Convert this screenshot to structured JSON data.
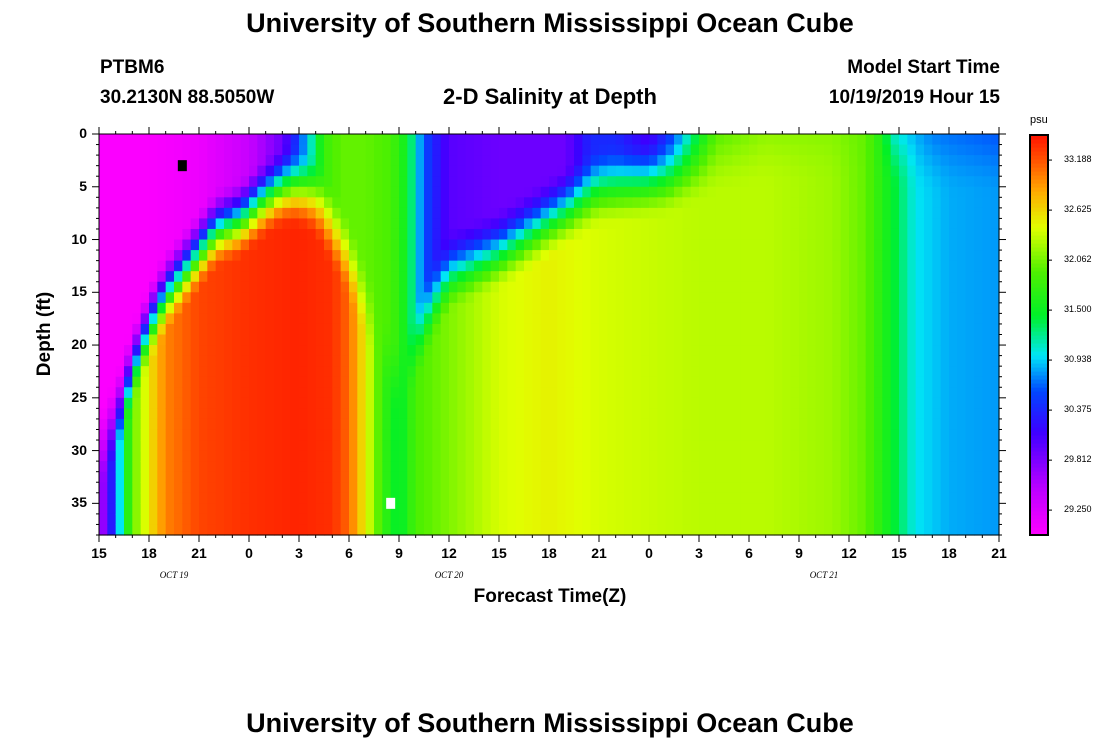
{
  "header": {
    "title_top": "University of Southern Mississippi Ocean Cube",
    "station": "PTBM6",
    "location": "30.2130N 88.5050W",
    "chart_title": "2-D Salinity at Depth",
    "model_label": "Model Start Time",
    "model_time": "10/19/2019 Hour 15",
    "title_bottom": "University of Southern Mississippi Ocean Cube"
  },
  "chart_data": {
    "type": "heatmap",
    "title": "2-D Salinity at Depth",
    "xlabel": "Forecast Time(Z)",
    "ylabel": "Depth (ft)",
    "units": "psu",
    "x_tick_labels": [
      "15",
      "18",
      "21",
      "0",
      "3",
      "6",
      "9",
      "12",
      "15",
      "18",
      "21",
      "0",
      "3",
      "6",
      "9",
      "12",
      "15",
      "18",
      "21"
    ],
    "x_range_hours": [
      0,
      54
    ],
    "date_labels": [
      {
        "text": "OCT 19",
        "hour": 4.5
      },
      {
        "text": "OCT 20",
        "hour": 21
      },
      {
        "text": "OCT 21",
        "hour": 43.5
      }
    ],
    "y_tick_labels": [
      "0",
      "5",
      "10",
      "15",
      "20",
      "25",
      "30",
      "35"
    ],
    "y_range_ft": [
      0,
      38
    ],
    "colorbar": {
      "label": "psu",
      "min": 28.97,
      "max": 33.47,
      "ticks": [
        "33.188",
        "32.625",
        "32.062",
        "31.500",
        "30.938",
        "30.375",
        "29.812",
        "29.250"
      ],
      "tick_values": [
        33.188,
        32.625,
        32.062,
        31.5,
        30.938,
        30.375,
        29.812,
        29.25
      ]
    },
    "markers": [
      {
        "kind": "minimum",
        "color": "#000000",
        "hour": 5,
        "depth": 3
      },
      {
        "kind": "maximum",
        "color": "#ffffff",
        "hour": 17.5,
        "depth": 35
      }
    ],
    "surface_profile": [
      [
        0,
        29.0
      ],
      [
        3,
        29.0
      ],
      [
        6,
        29.1
      ],
      [
        9,
        29.4
      ],
      [
        11,
        29.9
      ],
      [
        12.5,
        30.9
      ],
      [
        13.5,
        31.8
      ],
      [
        14.5,
        32.0
      ],
      [
        16,
        32.0
      ],
      [
        17.5,
        31.9
      ],
      [
        18.5,
        31.5
      ],
      [
        19.5,
        30.6
      ],
      [
        21,
        30.0
      ],
      [
        24,
        29.9
      ],
      [
        28,
        29.9
      ],
      [
        29.5,
        30.4
      ],
      [
        31,
        30.4
      ],
      [
        33,
        30.1
      ],
      [
        34.5,
        30.6
      ],
      [
        36,
        31.4
      ],
      [
        37,
        31.9
      ],
      [
        40,
        32.1
      ],
      [
        44,
        32.1
      ],
      [
        46,
        32.0
      ],
      [
        47,
        31.6
      ],
      [
        47.5,
        31.0
      ],
      [
        50,
        30.7
      ],
      [
        54,
        30.6
      ]
    ],
    "core_profile": [
      [
        0,
        29.4
      ],
      [
        1,
        30.6
      ],
      [
        1.5,
        31.4
      ],
      [
        2,
        32.0
      ],
      [
        3,
        32.55
      ],
      [
        4,
        33.0
      ],
      [
        6,
        33.25
      ],
      [
        9,
        33.35
      ],
      [
        12,
        33.4
      ],
      [
        14,
        33.35
      ],
      [
        15,
        33.1
      ],
      [
        16,
        32.5
      ],
      [
        17,
        31.8
      ],
      [
        18,
        31.4
      ],
      [
        19,
        31.9
      ],
      [
        21,
        32.1
      ],
      [
        24,
        32.4
      ],
      [
        27,
        32.5
      ],
      [
        30,
        32.4
      ],
      [
        33,
        32.35
      ],
      [
        36,
        32.3
      ],
      [
        40,
        32.3
      ],
      [
        44,
        32.2
      ],
      [
        46,
        32.0
      ],
      [
        47.5,
        31.5
      ],
      [
        49,
        31.0
      ],
      [
        51,
        30.85
      ],
      [
        54,
        30.8
      ]
    ],
    "front_depth_profile": [
      [
        0,
        30
      ],
      [
        1,
        27
      ],
      [
        2,
        22
      ],
      [
        3,
        18
      ],
      [
        4,
        15
      ],
      [
        5,
        13
      ],
      [
        6,
        11
      ],
      [
        7,
        9
      ],
      [
        8.5,
        8
      ],
      [
        10,
        6
      ],
      [
        11,
        5
      ],
      [
        12,
        5
      ],
      [
        13,
        6
      ],
      [
        14,
        9
      ],
      [
        15,
        12
      ],
      [
        16,
        16
      ],
      [
        17,
        20
      ],
      [
        18,
        24
      ],
      [
        19,
        20
      ],
      [
        20,
        16
      ],
      [
        21,
        13
      ],
      [
        24,
        11
      ],
      [
        26,
        9
      ],
      [
        28,
        7
      ],
      [
        30,
        5
      ],
      [
        34,
        4
      ],
      [
        37,
        2
      ],
      [
        40,
        1
      ],
      [
        44,
        1
      ],
      [
        47,
        1
      ],
      [
        50,
        2
      ],
      [
        54,
        2
      ]
    ]
  }
}
